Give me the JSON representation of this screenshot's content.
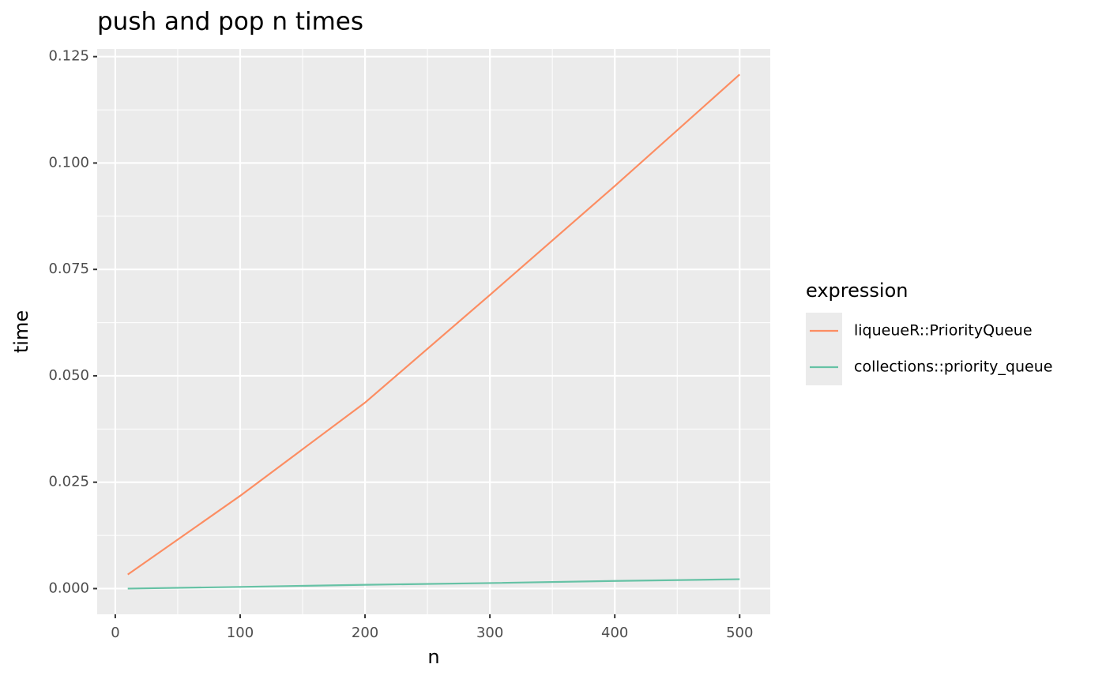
{
  "chart_data": {
    "type": "line",
    "title": "push and pop n times",
    "x_label": "n",
    "y_label": "time",
    "x": [
      10,
      100,
      200,
      300,
      400,
      500
    ],
    "series": [
      {
        "name": "liqueueR::PriorityQueue",
        "color": "#fc8d62",
        "values": [
          0.0033,
          0.0218,
          0.0437,
          0.069,
          0.0946,
          0.1208
        ]
      },
      {
        "name": "collections::priority_queue",
        "color": "#66c2a5",
        "values": [
          0.0,
          0.0004,
          0.0009,
          0.0013,
          0.0018,
          0.0022
        ]
      }
    ],
    "legend_title": "expression",
    "legend_position": "right",
    "xlim": [
      -14.5,
      524.5
    ],
    "xticks": [
      0,
      100,
      200,
      300,
      400,
      500
    ],
    "xminor": [
      50,
      150,
      250,
      350,
      450
    ],
    "ylim": [
      -0.00604,
      0.1268
    ],
    "yticks": [
      {
        "value": 0,
        "label": "0.000"
      },
      {
        "value": 0.025,
        "label": "0.025"
      },
      {
        "value": 0.05,
        "label": "0.050"
      },
      {
        "value": 0.075,
        "label": "0.075"
      },
      {
        "value": 0.1,
        "label": "0.100"
      },
      {
        "value": 0.125,
        "label": "0.125"
      }
    ],
    "yminor": [
      0.0125,
      0.0375,
      0.0625,
      0.0875,
      0.1125
    ],
    "grid": true
  }
}
